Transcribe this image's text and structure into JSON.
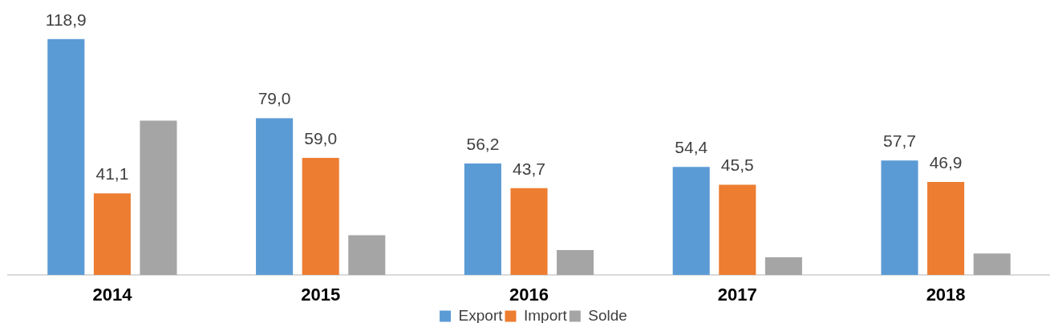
{
  "chart_data": {
    "type": "bar",
    "categories": [
      "2014",
      "2015",
      "2016",
      "2017",
      "2018"
    ],
    "series": [
      {
        "name": "Export",
        "color": "#5b9bd5",
        "values": [
          118.9,
          79.0,
          56.2,
          54.4,
          57.7
        ],
        "value_labels": [
          "118,9",
          "79,0",
          "56,2",
          "54,4",
          "57,7"
        ]
      },
      {
        "name": "Import",
        "color": "#ed7d31",
        "values": [
          41.1,
          59.0,
          43.7,
          45.5,
          46.9
        ],
        "value_labels": [
          "41,1",
          "59,0",
          "43,7",
          "45,5",
          "46,9"
        ]
      },
      {
        "name": "Solde",
        "color": "#a5a5a5",
        "values": [
          77.8,
          20.0,
          12.5,
          8.9,
          10.8
        ]
      }
    ],
    "legend": "bottom"
  }
}
